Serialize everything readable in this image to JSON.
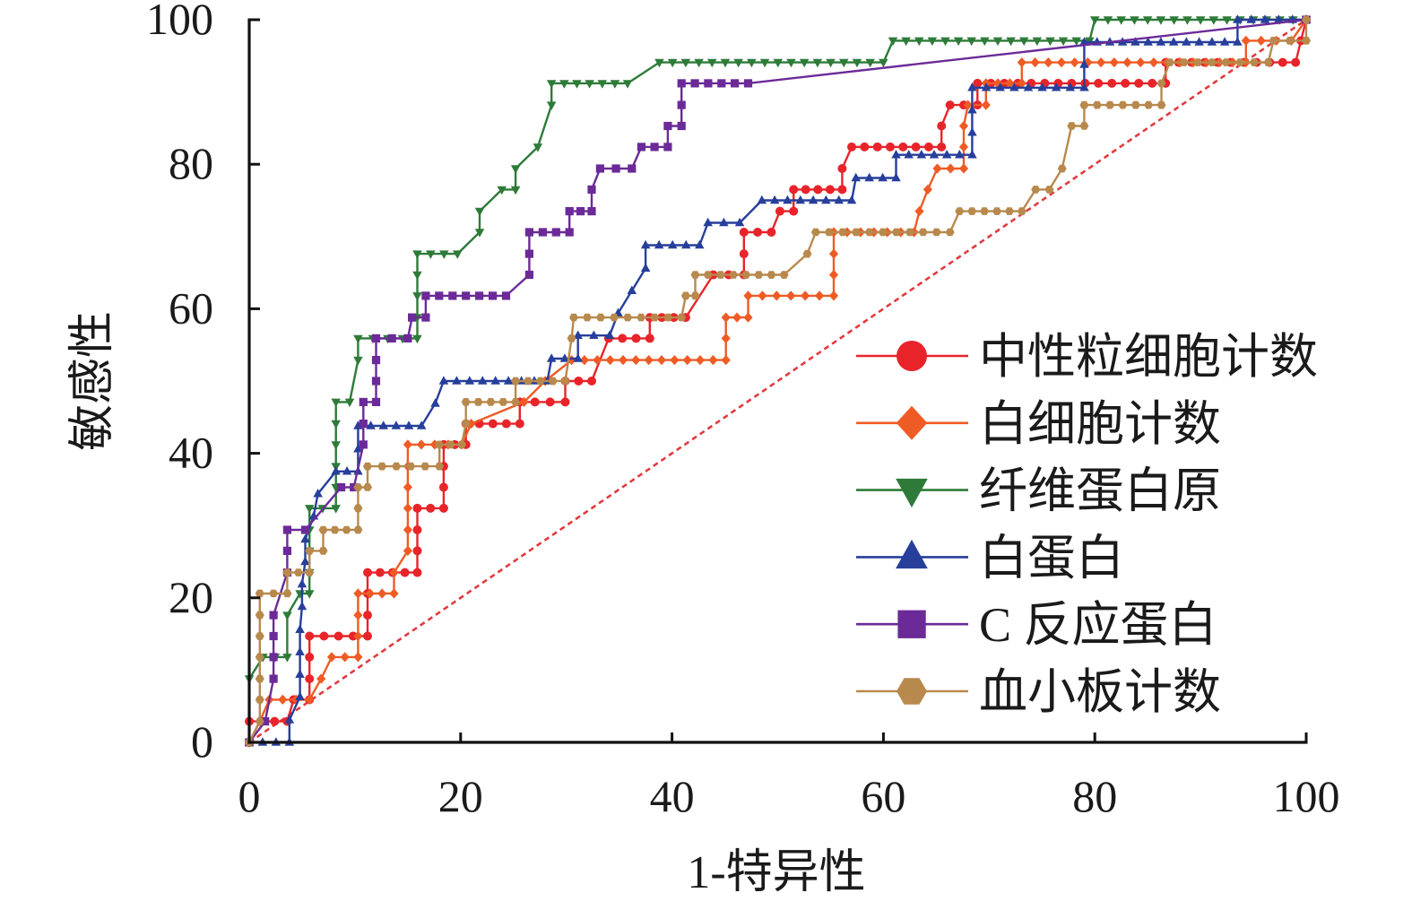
{
  "chart_data": {
    "type": "line",
    "xlabel": "1-特异性",
    "ylabel": "敏感性",
    "xlim": [
      0,
      100
    ],
    "ylim": [
      0,
      100
    ],
    "xticks": [
      0,
      20,
      40,
      60,
      80,
      100
    ],
    "yticks": [
      0,
      20,
      40,
      60,
      80,
      100
    ],
    "grid": false,
    "legend": "center-right",
    "reference_line": {
      "x": [
        0,
        100
      ],
      "y": [
        0,
        100
      ],
      "color": "#e23a3f",
      "line_style": "dashed"
    },
    "series": [
      {
        "name": "中性粒细胞计数",
        "color": "#e8242a",
        "marker": "circle",
        "points": [
          [
            0,
            0
          ],
          [
            0,
            2.9
          ],
          [
            3.6,
            2.9
          ],
          [
            4.2,
            5.9
          ],
          [
            5.7,
            5.9
          ],
          [
            5.7,
            8.8
          ],
          [
            5.7,
            11.8
          ],
          [
            5.7,
            14.7
          ],
          [
            11.2,
            14.7
          ],
          [
            11.2,
            17.6
          ],
          [
            11.2,
            20.6
          ],
          [
            11.2,
            23.5
          ],
          [
            15.9,
            23.5
          ],
          [
            15.9,
            26.5
          ],
          [
            15.9,
            29.4
          ],
          [
            15.9,
            32.4
          ],
          [
            18.4,
            32.4
          ],
          [
            18.4,
            35.3
          ],
          [
            18.4,
            38.2
          ],
          [
            18.4,
            41.2
          ],
          [
            20.5,
            41.2
          ],
          [
            20.5,
            44.1
          ],
          [
            25.6,
            44.1
          ],
          [
            25.6,
            47.1
          ],
          [
            29.9,
            47.1
          ],
          [
            29.9,
            50.0
          ],
          [
            32.4,
            50.0
          ],
          [
            34.0,
            55.9
          ],
          [
            37.9,
            55.9
          ],
          [
            37.9,
            58.8
          ],
          [
            41.3,
            58.8
          ],
          [
            43.9,
            64.7
          ],
          [
            46.8,
            64.7
          ],
          [
            46.8,
            67.6
          ],
          [
            46.8,
            70.6
          ],
          [
            49.4,
            70.6
          ],
          [
            50.2,
            73.5
          ],
          [
            51.5,
            73.5
          ],
          [
            51.5,
            76.5
          ],
          [
            56.1,
            76.5
          ],
          [
            56.1,
            79.4
          ],
          [
            57.0,
            82.4
          ],
          [
            65.5,
            82.4
          ],
          [
            65.5,
            85.3
          ],
          [
            66.3,
            88.2
          ],
          [
            68.9,
            88.2
          ],
          [
            68.9,
            91.2
          ],
          [
            86.7,
            91.2
          ],
          [
            86.7,
            94.1
          ],
          [
            99.0,
            94.1
          ],
          [
            99.5,
            97.1
          ],
          [
            100,
            100
          ]
        ]
      },
      {
        "name": "白细胞计数",
        "color": "#ef5b25",
        "marker": "diamond",
        "points": [
          [
            0,
            0
          ],
          [
            1.0,
            2.9
          ],
          [
            1.9,
            5.9
          ],
          [
            5.7,
            5.9
          ],
          [
            6.8,
            8.8
          ],
          [
            7.8,
            11.8
          ],
          [
            10.3,
            11.8
          ],
          [
            10.3,
            14.7
          ],
          [
            10.3,
            17.6
          ],
          [
            10.3,
            20.6
          ],
          [
            13.7,
            20.6
          ],
          [
            13.7,
            23.5
          ],
          [
            15.0,
            26.5
          ],
          [
            15.0,
            29.4
          ],
          [
            15.0,
            32.4
          ],
          [
            15.0,
            35.3
          ],
          [
            15.0,
            38.2
          ],
          [
            15.0,
            41.2
          ],
          [
            20.1,
            41.2
          ],
          [
            21.0,
            44.1
          ],
          [
            26.0,
            47.1
          ],
          [
            28.0,
            50.0
          ],
          [
            30.5,
            52.9
          ],
          [
            45.1,
            52.9
          ],
          [
            45.1,
            55.9
          ],
          [
            45.1,
            58.8
          ],
          [
            47.2,
            58.8
          ],
          [
            47.2,
            61.8
          ],
          [
            55.3,
            61.8
          ],
          [
            55.3,
            64.7
          ],
          [
            55.3,
            67.6
          ],
          [
            55.3,
            70.6
          ],
          [
            62.9,
            70.6
          ],
          [
            63.4,
            73.5
          ],
          [
            64.2,
            76.5
          ],
          [
            65.1,
            79.4
          ],
          [
            67.6,
            79.4
          ],
          [
            67.6,
            82.4
          ],
          [
            67.6,
            85.3
          ],
          [
            68.0,
            88.2
          ],
          [
            69.7,
            88.2
          ],
          [
            69.7,
            91.2
          ],
          [
            73.1,
            91.2
          ],
          [
            73.1,
            94.1
          ],
          [
            94.3,
            94.1
          ],
          [
            94.3,
            97.1
          ],
          [
            98.6,
            97.1
          ],
          [
            100,
            100
          ]
        ]
      },
      {
        "name": "纤维蛋白原",
        "color": "#2e7b39",
        "marker": "triangle-down",
        "points": [
          [
            0,
            0
          ],
          [
            0,
            8.8
          ],
          [
            1.3,
            11.8
          ],
          [
            3.6,
            11.8
          ],
          [
            3.6,
            17.6
          ],
          [
            4.8,
            20.6
          ],
          [
            5.7,
            20.6
          ],
          [
            5.7,
            23.5
          ],
          [
            5.7,
            26.5
          ],
          [
            5.7,
            29.4
          ],
          [
            5.7,
            32.4
          ],
          [
            8.2,
            32.4
          ],
          [
            8.2,
            35.3
          ],
          [
            8.2,
            38.2
          ],
          [
            8.2,
            41.2
          ],
          [
            8.2,
            44.1
          ],
          [
            8.2,
            47.1
          ],
          [
            9.5,
            47.1
          ],
          [
            10.3,
            52.9
          ],
          [
            10.3,
            55.9
          ],
          [
            15.9,
            55.9
          ],
          [
            15.9,
            58.8
          ],
          [
            15.9,
            61.8
          ],
          [
            15.9,
            64.7
          ],
          [
            15.9,
            67.6
          ],
          [
            19.7,
            67.6
          ],
          [
            21.8,
            70.6
          ],
          [
            21.8,
            73.5
          ],
          [
            23.9,
            76.5
          ],
          [
            25.2,
            76.5
          ],
          [
            25.2,
            79.4
          ],
          [
            27.3,
            82.4
          ],
          [
            28.6,
            88.2
          ],
          [
            28.6,
            91.2
          ],
          [
            35.8,
            91.2
          ],
          [
            38.8,
            94.1
          ],
          [
            60.0,
            94.1
          ],
          [
            60.9,
            97.1
          ],
          [
            79.5,
            97.1
          ],
          [
            80.0,
            100
          ],
          [
            100,
            100
          ]
        ]
      },
      {
        "name": "白蛋白",
        "color": "#273f9b",
        "marker": "triangle-up",
        "points": [
          [
            0,
            0
          ],
          [
            3.8,
            0
          ],
          [
            3.8,
            3.1
          ],
          [
            4.8,
            6.3
          ],
          [
            4.8,
            9.4
          ],
          [
            4.8,
            12.5
          ],
          [
            4.8,
            15.6
          ],
          [
            5.0,
            18.8
          ],
          [
            5.0,
            21.9
          ],
          [
            5.3,
            25.0
          ],
          [
            5.3,
            28.1
          ],
          [
            6.1,
            31.3
          ],
          [
            6.5,
            34.4
          ],
          [
            8.2,
            37.5
          ],
          [
            10.3,
            37.5
          ],
          [
            10.3,
            40.6
          ],
          [
            10.3,
            43.8
          ],
          [
            16.3,
            43.8
          ],
          [
            17.6,
            46.9
          ],
          [
            18.4,
            50.0
          ],
          [
            28.2,
            50.0
          ],
          [
            28.6,
            53.1
          ],
          [
            31.1,
            53.1
          ],
          [
            31.1,
            56.3
          ],
          [
            34.1,
            56.3
          ],
          [
            34.9,
            59.4
          ],
          [
            36.2,
            62.5
          ],
          [
            37.5,
            65.6
          ],
          [
            37.5,
            68.8
          ],
          [
            42.6,
            68.8
          ],
          [
            43.4,
            71.9
          ],
          [
            46.4,
            71.9
          ],
          [
            48.5,
            75.0
          ],
          [
            57.0,
            75.0
          ],
          [
            57.4,
            78.1
          ],
          [
            61.2,
            78.1
          ],
          [
            61.2,
            81.3
          ],
          [
            68.4,
            81.3
          ],
          [
            68.4,
            84.4
          ],
          [
            68.4,
            87.5
          ],
          [
            68.4,
            90.6
          ],
          [
            79.0,
            90.6
          ],
          [
            79.0,
            93.8
          ],
          [
            79.0,
            96.9
          ],
          [
            93.5,
            96.9
          ],
          [
            93.5,
            100
          ],
          [
            100,
            100
          ]
        ]
      },
      {
        "name": "C 反应蛋白",
        "color": "#6b2a98",
        "marker": "square",
        "points": [
          [
            0,
            0
          ],
          [
            1.5,
            2.9
          ],
          [
            2.3,
            8.8
          ],
          [
            2.3,
            11.8
          ],
          [
            2.3,
            14.7
          ],
          [
            2.3,
            17.6
          ],
          [
            3.6,
            23.5
          ],
          [
            3.6,
            26.5
          ],
          [
            3.6,
            29.4
          ],
          [
            5.3,
            29.4
          ],
          [
            8.7,
            35.3
          ],
          [
            9.9,
            35.3
          ],
          [
            10.8,
            41.2
          ],
          [
            10.8,
            44.1
          ],
          [
            10.8,
            47.1
          ],
          [
            12.0,
            47.1
          ],
          [
            12.0,
            50.0
          ],
          [
            12.0,
            52.9
          ],
          [
            12.0,
            55.9
          ],
          [
            15.0,
            55.9
          ],
          [
            15.4,
            58.8
          ],
          [
            16.7,
            58.8
          ],
          [
            16.7,
            61.8
          ],
          [
            24.3,
            61.8
          ],
          [
            26.5,
            64.7
          ],
          [
            26.5,
            67.6
          ],
          [
            26.5,
            70.6
          ],
          [
            30.3,
            70.6
          ],
          [
            30.3,
            73.5
          ],
          [
            32.4,
            73.5
          ],
          [
            32.4,
            76.5
          ],
          [
            33.2,
            79.4
          ],
          [
            36.2,
            79.4
          ],
          [
            37.1,
            82.4
          ],
          [
            39.6,
            82.4
          ],
          [
            39.6,
            85.3
          ],
          [
            40.9,
            85.3
          ],
          [
            40.9,
            88.2
          ],
          [
            40.9,
            91.2
          ],
          [
            47.2,
            91.2
          ],
          [
            100,
            100
          ]
        ]
      },
      {
        "name": "血小板计数",
        "color": "#b8894d",
        "marker": "hexagon",
        "points": [
          [
            0,
            0
          ],
          [
            1.0,
            2.9
          ],
          [
            1.0,
            5.9
          ],
          [
            1.0,
            8.8
          ],
          [
            1.0,
            11.8
          ],
          [
            1.0,
            14.7
          ],
          [
            1.0,
            17.6
          ],
          [
            1.0,
            20.6
          ],
          [
            3.6,
            20.6
          ],
          [
            3.6,
            23.5
          ],
          [
            5.7,
            23.5
          ],
          [
            5.7,
            26.5
          ],
          [
            7.0,
            26.5
          ],
          [
            7.0,
            29.4
          ],
          [
            10.3,
            29.4
          ],
          [
            10.3,
            32.4
          ],
          [
            10.3,
            35.3
          ],
          [
            11.2,
            35.3
          ],
          [
            11.2,
            38.2
          ],
          [
            18.0,
            38.2
          ],
          [
            18.0,
            41.2
          ],
          [
            20.1,
            41.2
          ],
          [
            20.5,
            44.1
          ],
          [
            20.5,
            47.1
          ],
          [
            25.2,
            47.1
          ],
          [
            25.2,
            50.0
          ],
          [
            29.9,
            50.0
          ],
          [
            30.5,
            55.9
          ],
          [
            30.7,
            58.8
          ],
          [
            40.9,
            58.8
          ],
          [
            41.3,
            61.8
          ],
          [
            42.2,
            61.8
          ],
          [
            42.2,
            64.7
          ],
          [
            50.6,
            64.7
          ],
          [
            52.8,
            67.6
          ],
          [
            53.6,
            70.6
          ],
          [
            66.3,
            70.6
          ],
          [
            67.2,
            73.5
          ],
          [
            73.1,
            73.5
          ],
          [
            74.4,
            76.5
          ],
          [
            75.7,
            76.5
          ],
          [
            76.9,
            79.4
          ],
          [
            77.8,
            85.3
          ],
          [
            79.0,
            85.3
          ],
          [
            79.0,
            88.2
          ],
          [
            86.3,
            88.2
          ],
          [
            86.3,
            91.2
          ],
          [
            87.1,
            94.1
          ],
          [
            96.4,
            94.1
          ],
          [
            96.9,
            97.1
          ],
          [
            100,
            97.1
          ],
          [
            100,
            100
          ]
        ]
      }
    ]
  }
}
